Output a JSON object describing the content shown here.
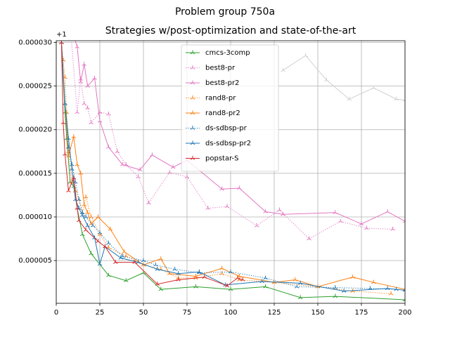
{
  "chart_data": {
    "type": "line",
    "title": "Problem group 750a",
    "subtitle": "Strategies w/post-optimization and state-of-the-art",
    "y_offset_label": "+1",
    "xlim": [
      0,
      200
    ],
    "xticks": [
      0,
      25,
      50,
      75,
      100,
      125,
      150,
      175,
      200
    ],
    "ylim": [
      1e-07,
      3.02e-05
    ],
    "yticks": [
      {
        "value": 5e-06,
        "label": "0.000005"
      },
      {
        "value": 1e-05,
        "label": "0.000010"
      },
      {
        "value": 1.5e-05,
        "label": "0.000015"
      },
      {
        "value": 2e-05,
        "label": "0.000020"
      },
      {
        "value": 2.5e-05,
        "label": "0.000025"
      },
      {
        "value": 3e-05,
        "label": "0.000030"
      }
    ],
    "grid": true,
    "legend": "upper center",
    "series": [
      {
        "name": null,
        "color": "#d0d0d0",
        "linestyle": "solid",
        "x": [
          130,
          143,
          155,
          168,
          182,
          195,
          200
        ],
        "values": [
          2.68e-05,
          2.85e-05,
          2.57e-05,
          2.35e-05,
          2.48e-05,
          2.35e-05,
          2.34e-05
        ]
      },
      {
        "name": "cmcs-3comp",
        "color": "#2ca02c",
        "linestyle": "solid",
        "x": [
          3,
          5,
          6,
          8,
          10,
          12,
          15,
          20,
          30,
          40,
          50,
          60,
          80,
          100,
          120,
          140,
          160,
          200
        ],
        "values": [
          3e-05,
          2.2e-05,
          1.9e-05,
          1.4e-05,
          1.35e-05,
          1.1e-05,
          8e-06,
          5.8e-06,
          3.3e-06,
          2.7e-06,
          3.6e-06,
          1.7e-06,
          2e-06,
          1.7e-06,
          2e-06,
          7.5e-07,
          9e-07,
          5e-07
        ]
      },
      {
        "name": "best8-pr",
        "color": "#e377c2",
        "linestyle": "dotted",
        "x": [
          5,
          8,
          12,
          14,
          16,
          18,
          20,
          25,
          30,
          35,
          40,
          47,
          53,
          65,
          75,
          87,
          98,
          115,
          128,
          145,
          163,
          178,
          193
        ],
        "values": [
          3.2e-05,
          3.2e-05,
          2.2e-05,
          2.58e-05,
          2.3e-05,
          2.25e-05,
          2.08e-05,
          2.2e-05,
          2.18e-05,
          1.75e-05,
          1.6e-05,
          1.46e-05,
          1.16e-05,
          1.51e-05,
          1.46e-05,
          1.1e-05,
          1.12e-05,
          9e-06,
          1.08e-05,
          7.5e-06,
          9.5e-06,
          8.7e-06,
          8.6e-06
        ]
      },
      {
        "name": "best8-pr2",
        "color": "#e377c2",
        "linestyle": "solid",
        "x": [
          8,
          12,
          14,
          16,
          18,
          22,
          25,
          30,
          38,
          48,
          55,
          67,
          75,
          95,
          105,
          120,
          130,
          160,
          175,
          190,
          200
        ],
        "values": [
          3.2e-05,
          2.95e-05,
          2.55e-05,
          2.75e-05,
          2.5e-05,
          2.59e-05,
          2.1e-05,
          1.8e-05,
          1.6e-05,
          1.54e-05,
          1.71e-05,
          1.57e-05,
          1.65e-05,
          1.32e-05,
          1.33e-05,
          1.06e-05,
          1.03e-05,
          1.05e-05,
          9.2e-06,
          1.06e-05,
          9.5e-06
        ]
      },
      {
        "name": "rand8-pr",
        "color": "#ff7f0e",
        "linestyle": "dotted",
        "x": [
          3,
          4,
          5,
          6,
          7,
          9,
          11,
          13,
          15,
          17,
          20,
          25,
          30,
          40,
          50,
          60,
          70,
          80,
          95,
          105,
          125,
          150,
          170,
          192
        ],
        "values": [
          3e-05,
          2.8e-05,
          2.6e-05,
          2.2e-05,
          1.75e-05,
          1.4e-05,
          1.3e-05,
          1.2e-05,
          1.05e-05,
          1.23e-05,
          1e-05,
          8e-06,
          6.5e-06,
          5.5e-06,
          4.5e-06,
          4e-06,
          3e-06,
          3e-06,
          3.5e-06,
          2.8e-06,
          2.5e-06,
          2e-06,
          1.5e-06,
          1.2e-06
        ]
      },
      {
        "name": "rand8-pr2",
        "color": "#ff7f0e",
        "linestyle": "solid",
        "x": [
          3,
          5,
          7,
          10,
          12,
          14,
          16,
          18,
          20,
          24,
          31,
          39,
          50,
          60,
          65,
          80,
          95,
          105,
          125,
          137,
          150,
          170,
          182,
          200
        ],
        "values": [
          3e-05,
          2.3e-05,
          1.7e-05,
          1.92e-05,
          1.6e-05,
          1.5e-05,
          1.14e-05,
          1.05e-05,
          9.2e-06,
          1e-05,
          8.6e-06,
          6e-06,
          4.5e-06,
          5.2e-06,
          3.5e-06,
          3.2e-06,
          4.1e-06,
          3.2e-06,
          2.5e-06,
          2.8e-06,
          2e-06,
          3.1e-06,
          2.5e-06,
          1.7e-06
        ]
      },
      {
        "name": "ds-sdbsp-pr",
        "color": "#1f77b4",
        "linestyle": "dotted",
        "x": [
          3,
          5,
          7,
          9,
          11,
          13,
          15,
          17,
          21,
          25,
          30,
          38,
          50,
          57,
          68,
          82,
          100,
          120,
          138,
          160,
          180,
          195
        ],
        "values": [
          3e-05,
          2.3e-05,
          1.8e-05,
          1.6e-05,
          1.4e-05,
          1.2e-05,
          1.05e-05,
          1e-05,
          9e-06,
          8.2e-06,
          7e-06,
          5.5e-06,
          5e-06,
          4.5e-06,
          4e-06,
          3.6e-06,
          3.7e-06,
          3e-06,
          2e-06,
          1.9e-06,
          1.8e-06,
          1.7e-06
        ]
      },
      {
        "name": "ds-sdbsp-pr2",
        "color": "#1f77b4",
        "linestyle": "solid",
        "x": [
          3,
          5,
          7,
          9,
          11,
          13,
          15,
          18,
          22,
          25,
          28,
          37,
          47,
          58,
          70,
          82,
          97,
          118,
          140,
          165,
          190,
          200
        ],
        "values": [
          3e-05,
          2.3e-05,
          1.9e-05,
          1.55e-05,
          1.2e-05,
          1.1e-05,
          1.02e-05,
          9e-06,
          7.6e-06,
          4.6e-06,
          6.6e-06,
          5.3e-06,
          4.8e-06,
          4e-06,
          3.5e-06,
          3.7e-06,
          2.2e-06,
          2.6e-06,
          2.4e-06,
          1.5e-06,
          1.8e-06,
          1.6e-06
        ]
      },
      {
        "name": "popstar-S",
        "color": "#d62728",
        "linestyle": "solid",
        "x": [
          3,
          4,
          5,
          7,
          10,
          12,
          13,
          17,
          24,
          28,
          34,
          45,
          58,
          70,
          85,
          98,
          104,
          107
        ],
        "values": [
          3e-05,
          2.08e-05,
          1.72e-05,
          1.3e-05,
          1.45e-05,
          1.1e-05,
          9.6e-06,
          8.5e-06,
          7.2e-06,
          6.6e-06,
          4.8e-06,
          4.8e-06,
          2.3e-06,
          2.8e-06,
          3.1e-06,
          2.1e-06,
          3e-06,
          2.8e-06
        ]
      }
    ]
  }
}
